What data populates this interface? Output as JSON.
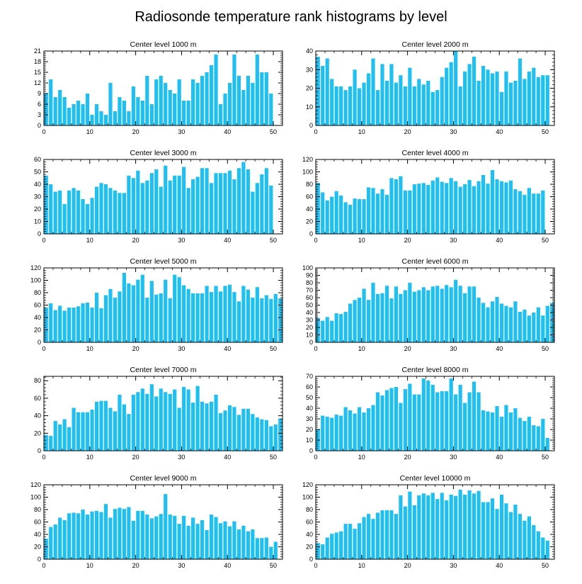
{
  "title": "Radiosonde temperature rank histograms by level",
  "colors": {
    "bar": "#1EC0F2",
    "axis": "#000000",
    "background": "#ffffff"
  },
  "chart_data": [
    {
      "type": "bar",
      "title": "Center level 1000 m",
      "xlim": [
        0,
        52
      ],
      "ylim": [
        0,
        21
      ],
      "xticks": [
        0,
        10,
        20,
        30,
        40,
        50
      ],
      "yticks": [
        0,
        3,
        6,
        9,
        12,
        15,
        18,
        21
      ],
      "x": [
        0,
        1,
        2,
        3,
        4,
        5,
        6,
        7,
        8,
        9,
        10,
        11,
        12,
        13,
        14,
        15,
        16,
        17,
        18,
        19,
        20,
        21,
        22,
        23,
        24,
        25,
        26,
        27,
        28,
        29,
        30,
        31,
        32,
        33,
        34,
        35,
        36,
        37,
        38,
        39,
        40,
        41,
        42,
        43,
        44,
        45,
        46,
        47,
        48,
        49,
        50,
        51
      ],
      "values": [
        9,
        13,
        8,
        10,
        8,
        5,
        6,
        7,
        6,
        9,
        3,
        6,
        4,
        3,
        12,
        4,
        8,
        7,
        4,
        11,
        8,
        7,
        14,
        6,
        13,
        14,
        12,
        10,
        9,
        13,
        7,
        7,
        13,
        12,
        14,
        15,
        17,
        20,
        6,
        9,
        12,
        20,
        14,
        10,
        14,
        12,
        20,
        15,
        15,
        9,
        0,
        0
      ]
    },
    {
      "type": "bar",
      "title": "Center level 2000 m",
      "xlim": [
        0,
        52
      ],
      "ylim": [
        0,
        40
      ],
      "xticks": [
        0,
        10,
        20,
        30,
        40,
        50
      ],
      "yticks": [
        0,
        10,
        20,
        30,
        40
      ],
      "x": [
        0,
        1,
        2,
        3,
        4,
        5,
        6,
        7,
        8,
        9,
        10,
        11,
        12,
        13,
        14,
        15,
        16,
        17,
        18,
        19,
        20,
        21,
        22,
        23,
        24,
        25,
        26,
        27,
        28,
        29,
        30,
        31,
        32,
        33,
        34,
        35,
        36,
        37,
        38,
        39,
        40,
        41,
        42,
        43,
        44,
        45,
        46,
        47,
        48,
        49,
        50,
        51
      ],
      "values": [
        37,
        32,
        36,
        25,
        21,
        21,
        19,
        21,
        30,
        20,
        23,
        28,
        36,
        19,
        33,
        24,
        33,
        23,
        27,
        21,
        31,
        21,
        25,
        22,
        24,
        18,
        19,
        26,
        31,
        34,
        40,
        21,
        29,
        33,
        37,
        24,
        32,
        30,
        28,
        29,
        18,
        29,
        23,
        24,
        36,
        25,
        29,
        31,
        26,
        27,
        27,
        0
      ]
    },
    {
      "type": "bar",
      "title": "Center level 3000 m",
      "xlim": [
        0,
        52
      ],
      "ylim": [
        0,
        60
      ],
      "xticks": [
        0,
        10,
        20,
        30,
        40,
        50
      ],
      "yticks": [
        0,
        10,
        20,
        30,
        40,
        50,
        60
      ],
      "x": [
        0,
        1,
        2,
        3,
        4,
        5,
        6,
        7,
        8,
        9,
        10,
        11,
        12,
        13,
        14,
        15,
        16,
        17,
        18,
        19,
        20,
        21,
        22,
        23,
        24,
        25,
        26,
        27,
        28,
        29,
        30,
        31,
        32,
        33,
        34,
        35,
        36,
        37,
        38,
        39,
        40,
        41,
        42,
        43,
        44,
        45,
        46,
        47,
        48,
        49,
        50,
        51
      ],
      "values": [
        47,
        40,
        34,
        35,
        24,
        35,
        37,
        35,
        28,
        24,
        29,
        38,
        41,
        40,
        37,
        35,
        33,
        33,
        47,
        45,
        51,
        41,
        43,
        49,
        52,
        38,
        55,
        43,
        47,
        47,
        54,
        37,
        44,
        46,
        53,
        53,
        41,
        49,
        49,
        49,
        51,
        44,
        53,
        58,
        52,
        34,
        41,
        48,
        53,
        39,
        0,
        0
      ]
    },
    {
      "type": "bar",
      "title": "Center level 4000 m",
      "xlim": [
        0,
        52
      ],
      "ylim": [
        0,
        120
      ],
      "xticks": [
        0,
        10,
        20,
        30,
        40,
        50
      ],
      "yticks": [
        0,
        20,
        40,
        60,
        80,
        100,
        120
      ],
      "x": [
        0,
        1,
        2,
        3,
        4,
        5,
        6,
        7,
        8,
        9,
        10,
        11,
        12,
        13,
        14,
        15,
        16,
        17,
        18,
        19,
        20,
        21,
        22,
        23,
        24,
        25,
        26,
        27,
        28,
        29,
        30,
        31,
        32,
        33,
        34,
        35,
        36,
        37,
        38,
        39,
        40,
        41,
        42,
        43,
        44,
        45,
        46,
        47,
        48,
        49,
        50,
        51
      ],
      "values": [
        82,
        67,
        54,
        60,
        69,
        62,
        51,
        47,
        57,
        56,
        56,
        75,
        74,
        65,
        72,
        63,
        90,
        88,
        93,
        70,
        70,
        80,
        81,
        82,
        79,
        86,
        91,
        84,
        82,
        90,
        85,
        76,
        80,
        87,
        77,
        85,
        95,
        81,
        103,
        88,
        85,
        83,
        86,
        72,
        69,
        63,
        74,
        65,
        65,
        70,
        0,
        0
      ]
    },
    {
      "type": "bar",
      "title": "Center level 5000 m",
      "xlim": [
        0,
        52
      ],
      "ylim": [
        0,
        120
      ],
      "xticks": [
        0,
        10,
        20,
        30,
        40,
        50
      ],
      "yticks": [
        0,
        20,
        40,
        60,
        80,
        100,
        120
      ],
      "x": [
        0,
        1,
        2,
        3,
        4,
        5,
        6,
        7,
        8,
        9,
        10,
        11,
        12,
        13,
        14,
        15,
        16,
        17,
        18,
        19,
        20,
        21,
        22,
        23,
        24,
        25,
        26,
        27,
        28,
        29,
        30,
        31,
        32,
        33,
        34,
        35,
        36,
        37,
        38,
        39,
        40,
        41,
        42,
        43,
        44,
        45,
        46,
        47,
        48,
        49,
        50,
        51
      ],
      "values": [
        56,
        63,
        52,
        59,
        51,
        56,
        56,
        58,
        63,
        64,
        56,
        80,
        55,
        76,
        86,
        72,
        82,
        112,
        95,
        92,
        101,
        109,
        72,
        99,
        77,
        79,
        101,
        71,
        109,
        105,
        92,
        86,
        79,
        79,
        79,
        91,
        81,
        91,
        82,
        91,
        93,
        81,
        66,
        91,
        85,
        72,
        89,
        71,
        76,
        70,
        78,
        71
      ]
    },
    {
      "type": "bar",
      "title": "Center level 6000 m",
      "xlim": [
        0,
        52
      ],
      "ylim": [
        0,
        100
      ],
      "xticks": [
        0,
        10,
        20,
        30,
        40,
        50
      ],
      "yticks": [
        0,
        10,
        20,
        30,
        40,
        50,
        60,
        70,
        80,
        90,
        100
      ],
      "x": [
        0,
        1,
        2,
        3,
        4,
        5,
        6,
        7,
        8,
        9,
        10,
        11,
        12,
        13,
        14,
        15,
        16,
        17,
        18,
        19,
        20,
        21,
        22,
        23,
        24,
        25,
        26,
        27,
        28,
        29,
        30,
        31,
        32,
        33,
        34,
        35,
        36,
        37,
        38,
        39,
        40,
        41,
        42,
        43,
        44,
        45,
        46,
        47,
        48,
        49,
        50,
        51
      ],
      "values": [
        33,
        29,
        34,
        29,
        39,
        38,
        41,
        52,
        57,
        60,
        72,
        57,
        80,
        65,
        66,
        76,
        59,
        75,
        65,
        70,
        80,
        68,
        70,
        74,
        70,
        75,
        76,
        72,
        77,
        74,
        84,
        76,
        66,
        75,
        75,
        60,
        53,
        47,
        55,
        61,
        52,
        49,
        47,
        55,
        41,
        44,
        36,
        40,
        47,
        36,
        49,
        53
      ]
    },
    {
      "type": "bar",
      "title": "Center level 7000 m",
      "xlim": [
        0,
        52
      ],
      "ylim": [
        0,
        85
      ],
      "xticks": [
        0,
        10,
        20,
        30,
        40,
        50
      ],
      "yticks": [
        0,
        20,
        40,
        60,
        80
      ],
      "x": [
        0,
        1,
        2,
        3,
        4,
        5,
        6,
        7,
        8,
        9,
        10,
        11,
        12,
        13,
        14,
        15,
        16,
        17,
        18,
        19,
        20,
        21,
        22,
        23,
        24,
        25,
        26,
        27,
        28,
        29,
        30,
        31,
        32,
        33,
        34,
        35,
        36,
        37,
        38,
        39,
        40,
        41,
        42,
        43,
        44,
        45,
        46,
        47,
        48,
        49,
        50,
        51
      ],
      "values": [
        18,
        17,
        34,
        30,
        36,
        27,
        49,
        44,
        44,
        44,
        47,
        56,
        57,
        57,
        49,
        45,
        64,
        53,
        42,
        64,
        67,
        71,
        65,
        76,
        62,
        71,
        67,
        65,
        70,
        49,
        73,
        70,
        55,
        74,
        56,
        54,
        56,
        64,
        43,
        46,
        52,
        50,
        41,
        48,
        48,
        42,
        38,
        36,
        35,
        28,
        30,
        37
      ]
    },
    {
      "type": "bar",
      "title": "Center level 8000 m",
      "xlim": [
        0,
        52
      ],
      "ylim": [
        0,
        70
      ],
      "xticks": [
        0,
        10,
        20,
        30,
        40,
        50
      ],
      "yticks": [
        0,
        10,
        20,
        30,
        40,
        50,
        60,
        70
      ],
      "x": [
        0,
        1,
        2,
        3,
        4,
        5,
        6,
        7,
        8,
        9,
        10,
        11,
        12,
        13,
        14,
        15,
        16,
        17,
        18,
        19,
        20,
        21,
        22,
        23,
        24,
        25,
        26,
        27,
        28,
        29,
        30,
        31,
        32,
        33,
        34,
        35,
        36,
        37,
        38,
        39,
        40,
        41,
        42,
        43,
        44,
        45,
        46,
        47,
        48,
        49,
        50,
        51
      ],
      "values": [
        20,
        33,
        32,
        31,
        34,
        33,
        41,
        38,
        35,
        41,
        36,
        40,
        43,
        55,
        52,
        57,
        59,
        60,
        45,
        58,
        63,
        53,
        53,
        68,
        66,
        62,
        55,
        56,
        56,
        68,
        53,
        62,
        45,
        55,
        65,
        55,
        38,
        37,
        36,
        42,
        32,
        43,
        36,
        40,
        31,
        28,
        32,
        24,
        23,
        30,
        12,
        0
      ]
    },
    {
      "type": "bar",
      "title": "Center level 9000 m",
      "xlim": [
        0,
        52
      ],
      "ylim": [
        0,
        120
      ],
      "xticks": [
        0,
        10,
        20,
        30,
        40,
        50
      ],
      "yticks": [
        0,
        20,
        40,
        60,
        80,
        100,
        120
      ],
      "x": [
        0,
        1,
        2,
        3,
        4,
        5,
        6,
        7,
        8,
        9,
        10,
        11,
        12,
        13,
        14,
        15,
        16,
        17,
        18,
        19,
        20,
        21,
        22,
        23,
        24,
        25,
        26,
        27,
        28,
        29,
        30,
        31,
        32,
        33,
        34,
        35,
        36,
        37,
        38,
        39,
        40,
        41,
        42,
        43,
        44,
        45,
        46,
        47,
        48,
        49,
        50,
        51
      ],
      "values": [
        33,
        52,
        56,
        67,
        63,
        74,
        75,
        74,
        80,
        72,
        77,
        78,
        76,
        89,
        67,
        81,
        83,
        81,
        84,
        62,
        78,
        78,
        72,
        66,
        69,
        73,
        105,
        72,
        70,
        57,
        70,
        54,
        67,
        57,
        63,
        47,
        72,
        68,
        58,
        61,
        53,
        61,
        48,
        54,
        45,
        48,
        34,
        34,
        35,
        20,
        28,
        0
      ]
    },
    {
      "type": "bar",
      "title": "Center level 10000 m",
      "xlim": [
        0,
        52
      ],
      "ylim": [
        0,
        120
      ],
      "xticks": [
        0,
        10,
        20,
        30,
        40,
        50
      ],
      "yticks": [
        0,
        20,
        40,
        60,
        80,
        100,
        120
      ],
      "x": [
        0,
        1,
        2,
        3,
        4,
        5,
        6,
        7,
        8,
        9,
        10,
        11,
        12,
        13,
        14,
        15,
        16,
        17,
        18,
        19,
        20,
        21,
        22,
        23,
        24,
        25,
        26,
        27,
        28,
        29,
        30,
        31,
        32,
        33,
        34,
        35,
        36,
        37,
        38,
        39,
        40,
        41,
        42,
        43,
        44,
        45,
        46,
        47,
        48,
        49,
        50,
        51
      ],
      "values": [
        26,
        24,
        35,
        41,
        43,
        45,
        57,
        57,
        49,
        58,
        68,
        73,
        65,
        75,
        79,
        79,
        79,
        73,
        103,
        85,
        109,
        87,
        103,
        106,
        103,
        107,
        97,
        107,
        95,
        104,
        102,
        112,
        104,
        111,
        106,
        110,
        92,
        92,
        98,
        81,
        104,
        90,
        76,
        88,
        73,
        62,
        69,
        55,
        45,
        35,
        30,
        0
      ]
    }
  ]
}
